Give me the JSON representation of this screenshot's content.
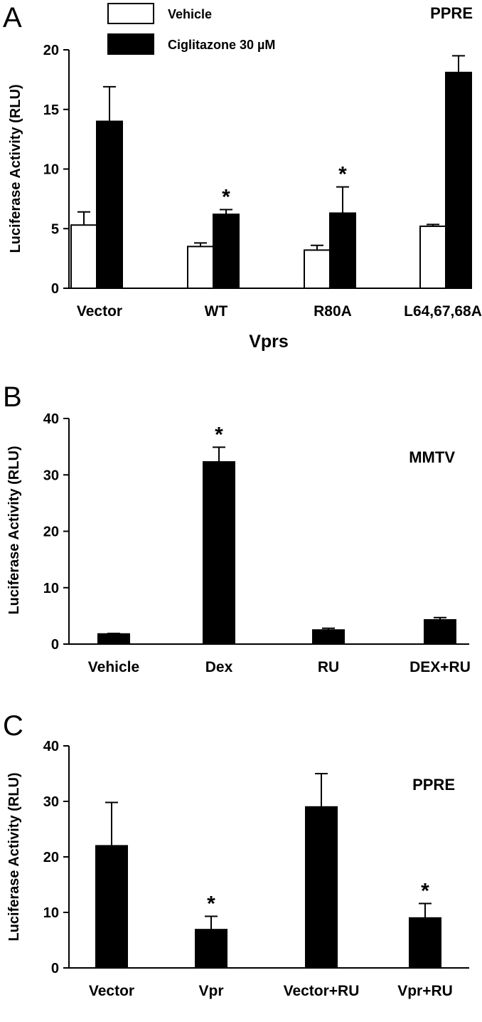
{
  "chart_data": [
    {
      "panel": "A",
      "type": "bar",
      "annotation": "PPRE",
      "xlabel": "Vprs",
      "ylabel": "Luciferase Activity (RLU)",
      "ylim": [
        0,
        20
      ],
      "yticks": [
        "0",
        "5",
        "10",
        "15",
        "20"
      ],
      "categories": [
        "Vector",
        "WT",
        "R80A",
        "L64,67,68A"
      ],
      "legend": {
        "position": "top-left"
      },
      "series": [
        {
          "name": "Vehicle",
          "fill": "#ffffff",
          "values": [
            5.3,
            3.5,
            3.2,
            5.2
          ],
          "errors": [
            1.1,
            0.3,
            0.4,
            0.15
          ]
        },
        {
          "name": "Ciglitazone 30 µM",
          "fill": "#000000",
          "values": [
            14.0,
            6.2,
            6.3,
            18.1
          ],
          "errors": [
            2.9,
            0.4,
            2.2,
            1.4
          ]
        }
      ],
      "significance": [
        {
          "category": "WT",
          "series": 1,
          "mark": "*"
        },
        {
          "category": "R80A",
          "series": 1,
          "mark": "*"
        }
      ]
    },
    {
      "panel": "B",
      "type": "bar",
      "annotation": "MMTV",
      "xlabel": "",
      "ylabel": "Luciferase Activity (RLU)",
      "ylim": [
        0,
        40
      ],
      "yticks": [
        "0",
        "10",
        "20",
        "30",
        "40"
      ],
      "categories": [
        "Vehicle",
        "Dex",
        "RU",
        "DEX+RU"
      ],
      "series": [
        {
          "fill": "#000000",
          "values": [
            1.8,
            32.3,
            2.5,
            4.3
          ],
          "errors": [
            0.1,
            2.6,
            0.3,
            0.4
          ]
        }
      ],
      "significance": [
        {
          "category": "Dex",
          "series": 0,
          "mark": "*"
        }
      ]
    },
    {
      "panel": "C",
      "type": "bar",
      "annotation": "PPRE",
      "xlabel": "",
      "ylabel": "Luciferase Activity (RLU)",
      "ylim": [
        0,
        40
      ],
      "yticks": [
        "0",
        "10",
        "20",
        "30",
        "40"
      ],
      "categories": [
        "Vector",
        "Vpr",
        "Vector+RU",
        "Vpr+RU"
      ],
      "series": [
        {
          "fill": "#000000",
          "values": [
            22.0,
            6.9,
            29.0,
            9.0
          ],
          "errors": [
            7.8,
            2.4,
            6.0,
            2.6
          ]
        }
      ],
      "significance": [
        {
          "category": "Vpr",
          "series": 0,
          "mark": "*"
        },
        {
          "category": "Vpr+RU",
          "series": 0,
          "mark": "*"
        }
      ]
    }
  ]
}
